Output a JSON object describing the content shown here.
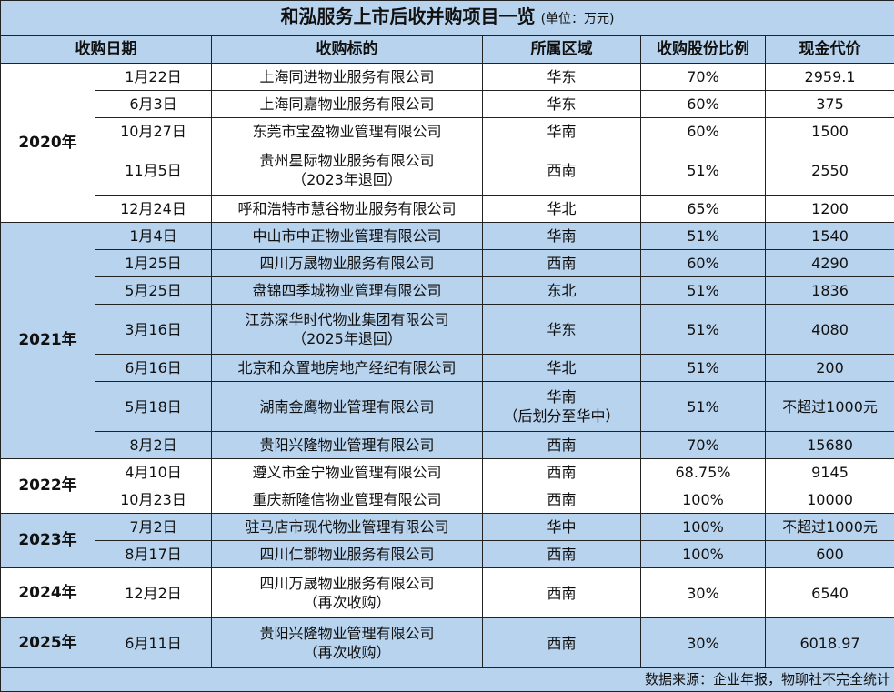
{
  "title": "和泓服务上市后收并购项目一览",
  "unit": "(单位：万元)",
  "headers": {
    "date": "收购日期",
    "target": "收购标的",
    "region": "所属区域",
    "ratio": "收购股份比例",
    "cash": "现金代价"
  },
  "groups": [
    {
      "year": "2020年",
      "rows": [
        {
          "date": "1月22日",
          "target": "上海同进物业服务有限公司",
          "region": "华东",
          "ratio": "70%",
          "cash": "2959.1"
        },
        {
          "date": "6月3日",
          "target": "上海同嘉物业服务有限公司",
          "region": "华东",
          "ratio": "60%",
          "cash": "375"
        },
        {
          "date": "10月27日",
          "target": "东莞市宝盈物业管理有限公司",
          "region": "华南",
          "ratio": "60%",
          "cash": "1500"
        },
        {
          "date": "11月5日",
          "target": "贵州星际物业服务有限公司",
          "target_note": "（2023年退回）",
          "region": "西南",
          "ratio": "51%",
          "cash": "2550"
        },
        {
          "date": "12月24日",
          "target": "呼和浩特市慧谷物业服务有限公司",
          "region": "华北",
          "ratio": "65%",
          "cash": "1200"
        }
      ]
    },
    {
      "year": "2021年",
      "rows": [
        {
          "date": "1月4日",
          "target": "中山市中正物业管理有限公司",
          "region": "华南",
          "ratio": "51%",
          "cash": "1540"
        },
        {
          "date": "1月25日",
          "target": "四川万晟物业服务有限公司",
          "region": "西南",
          "ratio": "60%",
          "cash": "4290"
        },
        {
          "date": "5月25日",
          "target": "盘锦四季城物业管理有限公司",
          "region": "东北",
          "ratio": "51%",
          "cash": "1836"
        },
        {
          "date": "3月16日",
          "target": "江苏深华时代物业集团有限公司",
          "target_note": "（2025年退回）",
          "region": "华东",
          "ratio": "51%",
          "cash": "4080"
        },
        {
          "date": "6月16日",
          "target": "北京和众置地房地产经纪有限公司",
          "region": "华北",
          "ratio": "51%",
          "cash": "200"
        },
        {
          "date": "5月18日",
          "target": "湖南金鹰物业管理有限公司",
          "region": "华南",
          "region_note": "（后划分至华中）",
          "ratio": "51%",
          "cash": "不超过1000元"
        },
        {
          "date": "8月2日",
          "target": "贵阳兴隆物业管理有限公司",
          "region": "西南",
          "ratio": "70%",
          "cash": "15680"
        }
      ]
    },
    {
      "year": "2022年",
      "rows": [
        {
          "date": "4月10日",
          "target": "遵义市金宁物业管理有限公司",
          "region": "西南",
          "ratio": "68.75%",
          "cash": "9145"
        },
        {
          "date": "10月23日",
          "target": "重庆新隆信物业管理有限公司",
          "region": "西南",
          "ratio": "100%",
          "cash": "10000"
        }
      ]
    },
    {
      "year": "2023年",
      "rows": [
        {
          "date": "7月2日",
          "target": "驻马店市现代物业管理有限公司",
          "region": "华中",
          "ratio": "100%",
          "cash": "不超过1000元"
        },
        {
          "date": "8月17日",
          "target": "四川仁郡物业服务有限公司",
          "region": "西南",
          "ratio": "100%",
          "cash": "600"
        }
      ]
    },
    {
      "year": "2024年",
      "rows": [
        {
          "date": "12月2日",
          "target": "四川万晟物业服务有限公司",
          "target_note": "（再次收购）",
          "region": "西南",
          "ratio": "30%",
          "cash": "6540"
        }
      ]
    },
    {
      "year": "2025年",
      "rows": [
        {
          "date": "6月11日",
          "target": "贵阳兴隆物业管理有限公司",
          "target_note": "（再次收购）",
          "region": "西南",
          "ratio": "30%",
          "cash": "6018.97"
        }
      ]
    }
  ],
  "footer": "数据来源：企业年报，物聊社不完全统计"
}
